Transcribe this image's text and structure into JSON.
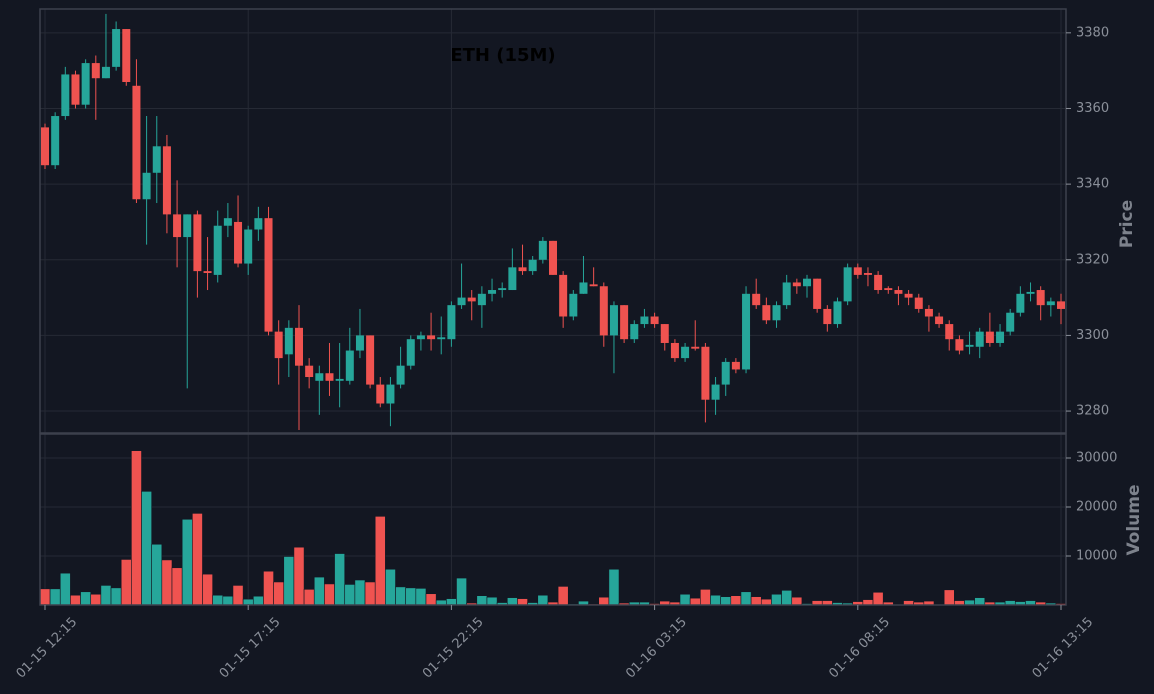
{
  "chart_data": [
    {
      "type": "candlestick",
      "title": "ETH (15M)",
      "ylabel": "Price",
      "up_color": "#26a69a",
      "down_color": "#ef5350",
      "grid": true,
      "categories": [
        "01-15 12:15",
        null,
        null,
        null,
        null,
        null,
        null,
        null,
        null,
        null,
        null,
        null,
        null,
        null,
        null,
        null,
        null,
        null,
        null,
        null,
        "01-15 17:15",
        null,
        null,
        null,
        null,
        null,
        null,
        null,
        null,
        null,
        null,
        null,
        null,
        null,
        null,
        null,
        null,
        null,
        null,
        null,
        "01-15 22:15",
        null,
        null,
        null,
        null,
        null,
        null,
        null,
        null,
        null,
        null,
        null,
        null,
        null,
        null,
        null,
        null,
        null,
        null,
        null,
        "01-16 03:15",
        null,
        null,
        null,
        null,
        null,
        null,
        null,
        null,
        null,
        null,
        null,
        null,
        null,
        null,
        null,
        null,
        null,
        null,
        null,
        "01-16 08:15",
        null,
        null,
        null,
        null,
        null,
        null,
        null,
        null,
        null,
        null,
        null,
        null,
        null,
        null,
        null,
        null,
        null,
        null,
        null,
        "01-16 13:15"
      ],
      "open": [
        3355,
        3345,
        3358,
        3369,
        3361,
        3372,
        3368,
        3371,
        3381,
        3366,
        3336,
        3343,
        3350,
        3332,
        3326,
        3332,
        3317,
        3316,
        3329,
        3330,
        3319,
        3328,
        3331,
        3301,
        3295,
        3302,
        3292,
        3288,
        3290,
        3288,
        3288,
        3296,
        3300,
        3287,
        3282,
        3287,
        3292,
        3299,
        3300,
        3299,
        3299,
        3308,
        3310,
        3308,
        3311,
        3312,
        3312,
        3318,
        3317,
        3320,
        3325,
        3316,
        3305,
        3311,
        3313.5,
        3313,
        3300,
        3308,
        3299,
        3303,
        3305,
        3303,
        3298,
        3294,
        3297,
        3297,
        3283,
        3287,
        3293,
        3291,
        3311,
        3308,
        3304,
        3308,
        3314,
        3313,
        3315,
        3307,
        3303,
        3309,
        3318,
        3316.5,
        3316,
        3312.5,
        3312,
        3311,
        3310,
        3307,
        3305,
        3303,
        3299,
        3297,
        3297,
        3301,
        3298,
        3301,
        3306,
        3311,
        3312,
        3308,
        3309
      ],
      "high": [
        3356,
        3359,
        3371,
        3370,
        3373,
        3374,
        3385,
        3383,
        3381,
        3373,
        3358,
        3358,
        3353,
        3341,
        3332,
        3333,
        3326,
        3333,
        3335,
        3337,
        3329,
        3334,
        3334,
        3304,
        3304,
        3308,
        3294,
        3292,
        3298,
        3298,
        3302,
        3307,
        3300,
        3289,
        3289,
        3297,
        3300,
        3301,
        3306,
        3305,
        3309,
        3319,
        3312,
        3313,
        3315,
        3314,
        3323,
        3324,
        3321,
        3326,
        3325,
        3317,
        3312,
        3321,
        3318,
        3314,
        3309,
        3308,
        3304,
        3307,
        3306,
        3303,
        3299,
        3298,
        3304,
        3298,
        3289,
        3294,
        3294,
        3313,
        3315,
        3310,
        3309,
        3316,
        3315,
        3316,
        3315,
        3308,
        3310,
        3319,
        3319,
        3318,
        3317,
        3313,
        3313,
        3312,
        3311,
        3308,
        3306,
        3304,
        3300,
        3301,
        3302,
        3306,
        3303,
        3307,
        3313,
        3314,
        3313,
        3310,
        3311
      ],
      "low": [
        3344,
        3344,
        3357,
        3360,
        3360,
        3357,
        3368,
        3370,
        3366,
        3335,
        3324,
        3335,
        3327,
        3318,
        3286,
        3310,
        3312,
        3314,
        3326,
        3318,
        3316,
        3325,
        3300,
        3287,
        3289,
        3275,
        3286,
        3279,
        3284,
        3281,
        3287,
        3294,
        3286,
        3281,
        3276,
        3286,
        3291,
        3296,
        3296,
        3295,
        3297,
        3307,
        3304,
        3302,
        3309,
        3310,
        3312,
        3316,
        3316,
        3319,
        3316,
        3302,
        3304,
        3311,
        3313,
        3297,
        3290,
        3298,
        3298,
        3302,
        3302,
        3296,
        3293,
        3293,
        3296,
        3277,
        3279,
        3284,
        3290,
        3290,
        3307,
        3303,
        3302,
        3307,
        3311,
        3310,
        3306,
        3301,
        3302,
        3308,
        3315,
        3313,
        3311,
        3311,
        3308,
        3308,
        3306,
        3301,
        3302,
        3296,
        3295,
        3295,
        3294,
        3297,
        3297,
        3300,
        3305,
        3309,
        3304,
        3305,
        3303
      ],
      "close": [
        3345,
        3358,
        3369,
        3361,
        3372,
        3368,
        3371,
        3381,
        3367,
        3336,
        3343,
        3350,
        3332,
        3326,
        3332,
        3317,
        3316.5,
        3329,
        3331,
        3319,
        3328,
        3331,
        3301,
        3294,
        3302,
        3292,
        3289,
        3290,
        3288,
        3288.5,
        3296,
        3300,
        3287,
        3282,
        3287,
        3292,
        3299,
        3300,
        3299,
        3299.5,
        3308,
        3310,
        3309,
        3311,
        3312,
        3312.5,
        3318,
        3317,
        3320,
        3325,
        3316,
        3305,
        3311,
        3314,
        3313,
        3300,
        3308,
        3299,
        3303,
        3305,
        3303,
        3298,
        3294,
        3297,
        3296.5,
        3283,
        3287,
        3293,
        3291,
        3311,
        3308,
        3304,
        3308,
        3314,
        3313,
        3315,
        3307,
        3303,
        3309,
        3318,
        3316,
        3316,
        3312,
        3312,
        3311,
        3310,
        3307,
        3305,
        3303,
        3299,
        3296,
        3297.5,
        3301,
        3298,
        3301,
        3306,
        3311,
        3311.5,
        3308,
        3309,
        3307
      ],
      "ylim": [
        3274.2,
        3386.3
      ],
      "yticks": [
        3280,
        3300,
        3320,
        3340,
        3360,
        3380
      ]
    },
    {
      "type": "volume",
      "ylabel": "Volume",
      "grid": true,
      "values": [
        3300,
        3300,
        6500,
        2000,
        2700,
        2200,
        4000,
        3500,
        9300,
        31500,
        23200,
        12400,
        9200,
        7600,
        17500,
        18700,
        6300,
        2000,
        1800,
        4000,
        1200,
        1800,
        6900,
        4700,
        9900,
        11800,
        3200,
        5700,
        4300,
        10500,
        4200,
        5100,
        4700,
        18100,
        7300,
        3700,
        3500,
        3400,
        2300,
        1000,
        1300,
        5500,
        400,
        1900,
        1600,
        500,
        1500,
        1300,
        500,
        2000,
        600,
        3800,
        200,
        800,
        200,
        1600,
        7300,
        400,
        600,
        600,
        300,
        800,
        600,
        2200,
        1400,
        3200,
        2000,
        1700,
        1900,
        2700,
        1700,
        1200,
        2200,
        3000,
        1600,
        300,
        900,
        900,
        500,
        400,
        700,
        1100,
        2600,
        600,
        100,
        900,
        600,
        800,
        100,
        3100,
        900,
        1000,
        1500,
        600,
        600,
        900,
        700,
        900,
        600,
        400,
        300
      ],
      "ylim": [
        0,
        34900
      ],
      "yticks": [
        10000,
        20000,
        30000
      ]
    }
  ]
}
